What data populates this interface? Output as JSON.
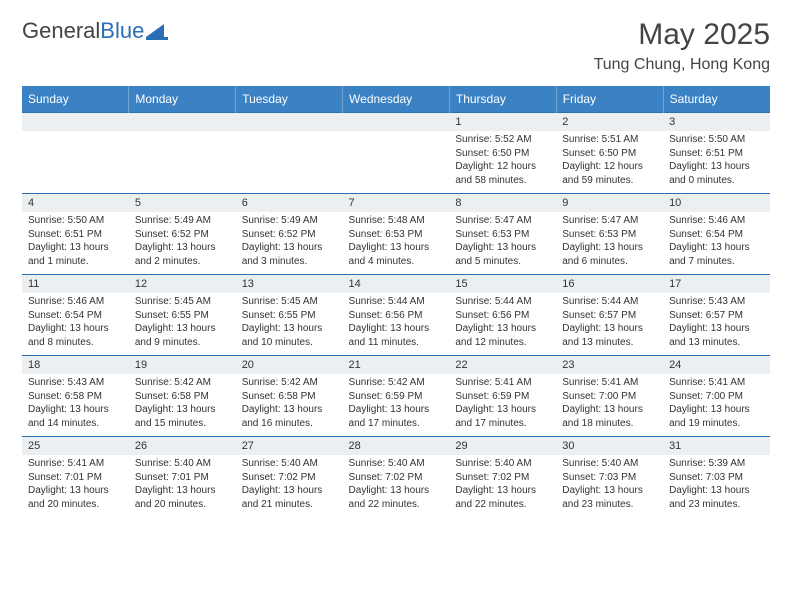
{
  "brand": {
    "part1": "General",
    "part2": "Blue"
  },
  "title": "May 2025",
  "location": "Tung Chung, Hong Kong",
  "colors": {
    "header_bg": "#3b82c4",
    "header_text": "#ffffff",
    "border": "#2a6fb5",
    "daynum_bg": "#eceff1",
    "text": "#333333",
    "brand_dark": "#444444",
    "brand_blue": "#2a6fb5",
    "page_bg": "#ffffff"
  },
  "day_headers": [
    "Sunday",
    "Monday",
    "Tuesday",
    "Wednesday",
    "Thursday",
    "Friday",
    "Saturday"
  ],
  "weeks": [
    [
      null,
      null,
      null,
      null,
      {
        "n": "1",
        "sr": "Sunrise: 5:52 AM",
        "ss": "Sunset: 6:50 PM",
        "dl": "Daylight: 12 hours and 58 minutes."
      },
      {
        "n": "2",
        "sr": "Sunrise: 5:51 AM",
        "ss": "Sunset: 6:50 PM",
        "dl": "Daylight: 12 hours and 59 minutes."
      },
      {
        "n": "3",
        "sr": "Sunrise: 5:50 AM",
        "ss": "Sunset: 6:51 PM",
        "dl": "Daylight: 13 hours and 0 minutes."
      }
    ],
    [
      {
        "n": "4",
        "sr": "Sunrise: 5:50 AM",
        "ss": "Sunset: 6:51 PM",
        "dl": "Daylight: 13 hours and 1 minute."
      },
      {
        "n": "5",
        "sr": "Sunrise: 5:49 AM",
        "ss": "Sunset: 6:52 PM",
        "dl": "Daylight: 13 hours and 2 minutes."
      },
      {
        "n": "6",
        "sr": "Sunrise: 5:49 AM",
        "ss": "Sunset: 6:52 PM",
        "dl": "Daylight: 13 hours and 3 minutes."
      },
      {
        "n": "7",
        "sr": "Sunrise: 5:48 AM",
        "ss": "Sunset: 6:53 PM",
        "dl": "Daylight: 13 hours and 4 minutes."
      },
      {
        "n": "8",
        "sr": "Sunrise: 5:47 AM",
        "ss": "Sunset: 6:53 PM",
        "dl": "Daylight: 13 hours and 5 minutes."
      },
      {
        "n": "9",
        "sr": "Sunrise: 5:47 AM",
        "ss": "Sunset: 6:53 PM",
        "dl": "Daylight: 13 hours and 6 minutes."
      },
      {
        "n": "10",
        "sr": "Sunrise: 5:46 AM",
        "ss": "Sunset: 6:54 PM",
        "dl": "Daylight: 13 hours and 7 minutes."
      }
    ],
    [
      {
        "n": "11",
        "sr": "Sunrise: 5:46 AM",
        "ss": "Sunset: 6:54 PM",
        "dl": "Daylight: 13 hours and 8 minutes."
      },
      {
        "n": "12",
        "sr": "Sunrise: 5:45 AM",
        "ss": "Sunset: 6:55 PM",
        "dl": "Daylight: 13 hours and 9 minutes."
      },
      {
        "n": "13",
        "sr": "Sunrise: 5:45 AM",
        "ss": "Sunset: 6:55 PM",
        "dl": "Daylight: 13 hours and 10 minutes."
      },
      {
        "n": "14",
        "sr": "Sunrise: 5:44 AM",
        "ss": "Sunset: 6:56 PM",
        "dl": "Daylight: 13 hours and 11 minutes."
      },
      {
        "n": "15",
        "sr": "Sunrise: 5:44 AM",
        "ss": "Sunset: 6:56 PM",
        "dl": "Daylight: 13 hours and 12 minutes."
      },
      {
        "n": "16",
        "sr": "Sunrise: 5:44 AM",
        "ss": "Sunset: 6:57 PM",
        "dl": "Daylight: 13 hours and 13 minutes."
      },
      {
        "n": "17",
        "sr": "Sunrise: 5:43 AM",
        "ss": "Sunset: 6:57 PM",
        "dl": "Daylight: 13 hours and 13 minutes."
      }
    ],
    [
      {
        "n": "18",
        "sr": "Sunrise: 5:43 AM",
        "ss": "Sunset: 6:58 PM",
        "dl": "Daylight: 13 hours and 14 minutes."
      },
      {
        "n": "19",
        "sr": "Sunrise: 5:42 AM",
        "ss": "Sunset: 6:58 PM",
        "dl": "Daylight: 13 hours and 15 minutes."
      },
      {
        "n": "20",
        "sr": "Sunrise: 5:42 AM",
        "ss": "Sunset: 6:58 PM",
        "dl": "Daylight: 13 hours and 16 minutes."
      },
      {
        "n": "21",
        "sr": "Sunrise: 5:42 AM",
        "ss": "Sunset: 6:59 PM",
        "dl": "Daylight: 13 hours and 17 minutes."
      },
      {
        "n": "22",
        "sr": "Sunrise: 5:41 AM",
        "ss": "Sunset: 6:59 PM",
        "dl": "Daylight: 13 hours and 17 minutes."
      },
      {
        "n": "23",
        "sr": "Sunrise: 5:41 AM",
        "ss": "Sunset: 7:00 PM",
        "dl": "Daylight: 13 hours and 18 minutes."
      },
      {
        "n": "24",
        "sr": "Sunrise: 5:41 AM",
        "ss": "Sunset: 7:00 PM",
        "dl": "Daylight: 13 hours and 19 minutes."
      }
    ],
    [
      {
        "n": "25",
        "sr": "Sunrise: 5:41 AM",
        "ss": "Sunset: 7:01 PM",
        "dl": "Daylight: 13 hours and 20 minutes."
      },
      {
        "n": "26",
        "sr": "Sunrise: 5:40 AM",
        "ss": "Sunset: 7:01 PM",
        "dl": "Daylight: 13 hours and 20 minutes."
      },
      {
        "n": "27",
        "sr": "Sunrise: 5:40 AM",
        "ss": "Sunset: 7:02 PM",
        "dl": "Daylight: 13 hours and 21 minutes."
      },
      {
        "n": "28",
        "sr": "Sunrise: 5:40 AM",
        "ss": "Sunset: 7:02 PM",
        "dl": "Daylight: 13 hours and 22 minutes."
      },
      {
        "n": "29",
        "sr": "Sunrise: 5:40 AM",
        "ss": "Sunset: 7:02 PM",
        "dl": "Daylight: 13 hours and 22 minutes."
      },
      {
        "n": "30",
        "sr": "Sunrise: 5:40 AM",
        "ss": "Sunset: 7:03 PM",
        "dl": "Daylight: 13 hours and 23 minutes."
      },
      {
        "n": "31",
        "sr": "Sunrise: 5:39 AM",
        "ss": "Sunset: 7:03 PM",
        "dl": "Daylight: 13 hours and 23 minutes."
      }
    ]
  ]
}
